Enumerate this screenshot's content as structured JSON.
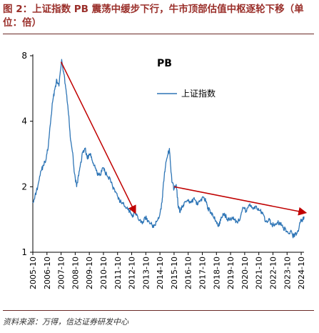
{
  "figure": {
    "caption": "图 2：上证指数 PB 震荡中缓步下行，牛市顶部估值中枢逐轮下移（单位：倍）",
    "source": "资料来源：万得，信达证券研发中心"
  },
  "colors": {
    "line": "#2e75b6",
    "trend": "#c00000",
    "caption": "#9a2f2a"
  },
  "chart_data": {
    "type": "line",
    "title": "PB",
    "yscale": "log",
    "ylim": [
      1,
      8
    ],
    "yticks": [
      1,
      2,
      4,
      8
    ],
    "xlim": [
      2005.75,
      2024.95
    ],
    "x_ticks": [
      "2005-10",
      "2006-10",
      "2007-10",
      "2008-10",
      "2009-10",
      "2010-10",
      "2011-10",
      "2012-10",
      "2013-10",
      "2014-10",
      "2015-10",
      "2016-10",
      "2017-10",
      "2018-10",
      "2019-10",
      "2020-10",
      "2021-10",
      "2022-10",
      "2023-10",
      "2024-10"
    ],
    "legend": "top-right",
    "series": [
      {
        "name": "上证指数",
        "x": [
          2005.75,
          2005.9,
          2006.1,
          2006.3,
          2006.5,
          2006.7,
          2006.85,
          2007.0,
          2007.15,
          2007.3,
          2007.45,
          2007.6,
          2007.75,
          2007.8,
          2007.95,
          2008.1,
          2008.25,
          2008.4,
          2008.55,
          2008.7,
          2008.85,
          2009.0,
          2009.15,
          2009.3,
          2009.45,
          2009.6,
          2009.75,
          2009.9,
          2010.1,
          2010.3,
          2010.5,
          2010.7,
          2010.85,
          2011.0,
          2011.2,
          2011.4,
          2011.6,
          2011.8,
          2012.0,
          2012.2,
          2012.4,
          2012.6,
          2012.8,
          2012.95,
          2013.1,
          2013.3,
          2013.5,
          2013.7,
          2013.9,
          2014.1,
          2014.3,
          2014.5,
          2014.7,
          2014.9,
          2015.0,
          2015.15,
          2015.3,
          2015.42,
          2015.5,
          2015.6,
          2015.75,
          2015.9,
          2016.05,
          2016.2,
          2016.4,
          2016.6,
          2016.8,
          2017.0,
          2017.2,
          2017.4,
          2017.6,
          2017.8,
          2018.0,
          2018.15,
          2018.35,
          2018.55,
          2018.75,
          2018.9,
          2019.05,
          2019.25,
          2019.45,
          2019.65,
          2019.85,
          2020.05,
          2020.25,
          2020.45,
          2020.65,
          2020.85,
          2021.05,
          2021.25,
          2021.45,
          2021.65,
          2021.85,
          2022.05,
          2022.25,
          2022.45,
          2022.65,
          2022.85,
          2023.05,
          2023.25,
          2023.45,
          2023.65,
          2023.85,
          2024.0,
          2024.15,
          2024.3,
          2024.45,
          2024.6,
          2024.75,
          2024.85,
          2024.95
        ],
        "y": [
          1.7,
          1.82,
          2.0,
          2.35,
          2.5,
          2.7,
          3.1,
          3.9,
          4.9,
          5.6,
          6.2,
          5.8,
          7.2,
          7.6,
          6.6,
          5.6,
          4.5,
          3.4,
          2.9,
          2.3,
          2.0,
          2.25,
          2.6,
          2.9,
          3.0,
          2.7,
          2.8,
          2.75,
          2.5,
          2.3,
          2.25,
          2.45,
          2.35,
          2.25,
          2.2,
          2.0,
          1.9,
          1.75,
          1.7,
          1.65,
          1.6,
          1.55,
          1.45,
          1.55,
          1.5,
          1.4,
          1.35,
          1.45,
          1.4,
          1.35,
          1.3,
          1.38,
          1.45,
          1.7,
          2.1,
          2.5,
          2.8,
          3.0,
          2.5,
          2.1,
          1.95,
          2.05,
          1.6,
          1.55,
          1.65,
          1.7,
          1.72,
          1.7,
          1.75,
          1.65,
          1.72,
          1.8,
          1.72,
          1.6,
          1.52,
          1.45,
          1.38,
          1.32,
          1.4,
          1.5,
          1.45,
          1.4,
          1.45,
          1.42,
          1.36,
          1.45,
          1.6,
          1.55,
          1.65,
          1.6,
          1.62,
          1.58,
          1.55,
          1.5,
          1.38,
          1.42,
          1.35,
          1.32,
          1.37,
          1.36,
          1.3,
          1.28,
          1.22,
          1.25,
          1.18,
          1.2,
          1.22,
          1.3,
          1.42,
          1.4,
          1.46
        ]
      }
    ],
    "trend_arrows": [
      {
        "from": [
          2007.75,
          7.5
        ],
        "to": [
          2013.0,
          1.52
        ]
      },
      {
        "from": [
          2015.75,
          2.0
        ],
        "to": [
          2025.05,
          1.52
        ]
      }
    ]
  }
}
